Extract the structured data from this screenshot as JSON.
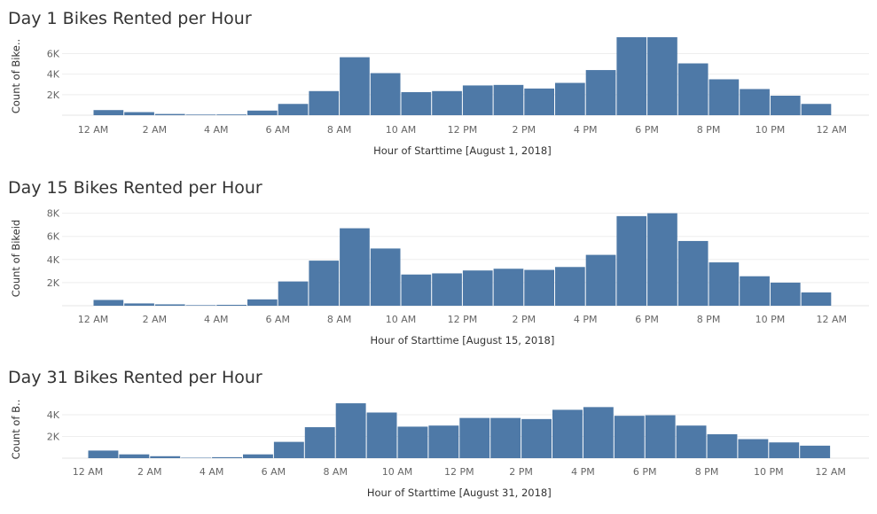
{
  "chart_data": [
    {
      "type": "bar",
      "title": "Day 1 Bikes Rented per Hour",
      "xlabel": "Hour of Starttime [August 1, 2018]",
      "ylabel": "Count of Bike..",
      "ylim": [
        0,
        7600
      ],
      "yticks": [
        2000,
        4000,
        6000
      ],
      "ytick_labels": [
        "2K",
        "4K",
        "6K"
      ],
      "xtick_labels": [
        "12 AM",
        "2 AM",
        "4 AM",
        "6 AM",
        "8 AM",
        "10 AM",
        "12 PM",
        "2 PM",
        "4 PM",
        "6 PM",
        "8 PM",
        "10 PM",
        "12 AM"
      ],
      "bar_color": "#4e79a7",
      "grid": true,
      "categories": [
        "0",
        "1",
        "2",
        "3",
        "4",
        "5",
        "6",
        "7",
        "8",
        "9",
        "10",
        "11",
        "12",
        "13",
        "14",
        "15",
        "16",
        "17",
        "18",
        "19",
        "20",
        "21",
        "22",
        "23"
      ],
      "values": [
        500,
        300,
        120,
        60,
        70,
        450,
        1100,
        2350,
        5650,
        4100,
        2250,
        2350,
        2900,
        2950,
        2600,
        3150,
        4400,
        7600,
        7600,
        5050,
        3500,
        2550,
        1900,
        1100
      ]
    },
    {
      "type": "bar",
      "title": "Day 15 Bikes Rented per Hour",
      "xlabel": "Hour of Starttime [August 15, 2018]",
      "ylabel": "Count of Bikeid",
      "ylim": [
        0,
        8200
      ],
      "yticks": [
        2000,
        4000,
        6000,
        8000
      ],
      "ytick_labels": [
        "2K",
        "4K",
        "6K",
        "8K"
      ],
      "xtick_labels": [
        "12 AM",
        "2 AM",
        "4 AM",
        "6 AM",
        "8 AM",
        "10 AM",
        "12 PM",
        "2 PM",
        "4 PM",
        "6 PM",
        "8 PM",
        "10 PM",
        "12 AM"
      ],
      "bar_color": "#4e79a7",
      "grid": true,
      "categories": [
        "0",
        "1",
        "2",
        "3",
        "4",
        "5",
        "6",
        "7",
        "8",
        "9",
        "10",
        "11",
        "12",
        "13",
        "14",
        "15",
        "16",
        "17",
        "18",
        "19",
        "20",
        "21",
        "22",
        "23"
      ],
      "values": [
        500,
        200,
        120,
        50,
        80,
        550,
        2100,
        3900,
        6700,
        4950,
        2700,
        2800,
        3050,
        3200,
        3100,
        3350,
        4400,
        7750,
        8000,
        5600,
        3750,
        2550,
        2000,
        1150
      ]
    },
    {
      "type": "bar",
      "title": "Day 31 Bikes Rented per Hour",
      "xlabel": "Hour of Starttime [August 31, 2018]",
      "ylabel": "Count of B..",
      "ylim": [
        0,
        5300
      ],
      "yticks": [
        2000,
        4000
      ],
      "ytick_labels": [
        "2K",
        "4K"
      ],
      "xtick_labels": [
        "12 AM",
        "2 AM",
        "4 AM",
        "6 AM",
        "8 AM",
        "10 AM",
        "12 PM",
        "2 PM",
        "4 PM",
        "6 PM",
        "8 PM",
        "10 PM",
        "12 AM"
      ],
      "bar_color": "#4e79a7",
      "grid": true,
      "categories": [
        "0",
        "1",
        "2",
        "3",
        "4",
        "5",
        "6",
        "7",
        "8",
        "9",
        "10",
        "11",
        "12",
        "13",
        "14",
        "15",
        "16",
        "17",
        "18",
        "19",
        "20",
        "21",
        "22",
        "23"
      ],
      "values": [
        700,
        350,
        180,
        40,
        90,
        350,
        1500,
        2850,
        5050,
        4200,
        2900,
        3000,
        3700,
        3700,
        3600,
        4450,
        4700,
        3900,
        3950,
        3000,
        2200,
        1750,
        1450,
        1150
      ]
    }
  ]
}
